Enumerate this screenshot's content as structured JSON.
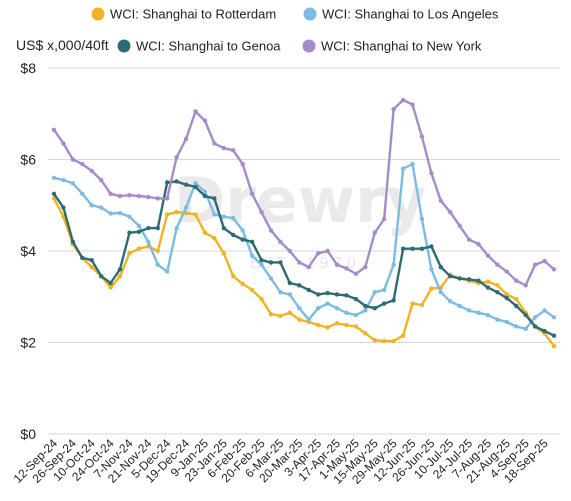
{
  "chart_data": {
    "type": "line",
    "title": "",
    "ylabel": "US$ x,000/40ft",
    "xlabel": "",
    "ylim": [
      0,
      8
    ],
    "yticks": [
      0,
      2,
      4,
      6,
      8
    ],
    "ytick_labels": [
      "$0",
      "$2",
      "$4",
      "$6",
      "$8"
    ],
    "grid": true,
    "legend": "top",
    "watermark": {
      "brand": "Drewry",
      "sub": "EST. 1970"
    },
    "x_labels": [
      "12-Sep-24",
      "26-Sep-24",
      "10-Oct-24",
      "24-Oct-24",
      "7-Nov-24",
      "21-Nov-24",
      "5-Dec-24",
      "19-Dec-24",
      "9-Jan-25",
      "23-Jan-25",
      "6-Feb-25",
      "20-Feb-25",
      "6-Mar-25",
      "20-Mar-25",
      "3-Apr-25",
      "17-Apr-25",
      "1-May-25",
      "15-May-25",
      "29-May-25",
      "12-Jun-25",
      "26-Jun-25",
      "10-Jul-25",
      "24-Jul-25",
      "7-Aug-25",
      "21-Aug-25",
      "4-Sep-25",
      "18-Sep-25"
    ],
    "x_dates": [
      "2024-09-12",
      "2024-09-19",
      "2024-09-26",
      "2024-10-03",
      "2024-10-10",
      "2024-10-17",
      "2024-10-24",
      "2024-10-31",
      "2024-11-07",
      "2024-11-14",
      "2024-11-21",
      "2024-11-28",
      "2024-12-05",
      "2024-12-12",
      "2024-12-19",
      "2024-12-26",
      "2025-01-02",
      "2025-01-09",
      "2025-01-16",
      "2025-01-23",
      "2025-01-30",
      "2025-02-06",
      "2025-02-13",
      "2025-02-20",
      "2025-02-27",
      "2025-03-06",
      "2025-03-13",
      "2025-03-20",
      "2025-03-27",
      "2025-04-03",
      "2025-04-10",
      "2025-04-17",
      "2025-04-24",
      "2025-05-01",
      "2025-05-08",
      "2025-05-15",
      "2025-05-22",
      "2025-05-29",
      "2025-06-05",
      "2025-06-12",
      "2025-06-19",
      "2025-06-26",
      "2025-07-03",
      "2025-07-10",
      "2025-07-17",
      "2025-07-24",
      "2025-07-31",
      "2025-08-07",
      "2025-08-14",
      "2025-08-21",
      "2025-08-28",
      "2025-09-04",
      "2025-09-11",
      "2025-09-18"
    ],
    "series": [
      {
        "name": "WCI: Shanghai to Rotterdam",
        "color": "#f0b323",
        "values": [
          5.15,
          4.75,
          4.15,
          3.85,
          3.65,
          3.45,
          3.2,
          3.45,
          3.95,
          4.05,
          4.1,
          4.0,
          4.8,
          4.85,
          4.83,
          4.8,
          4.4,
          4.28,
          3.95,
          3.45,
          3.28,
          3.15,
          2.95,
          2.62,
          2.58,
          2.65,
          2.5,
          2.45,
          2.38,
          2.33,
          2.42,
          2.38,
          2.35,
          2.2,
          2.05,
          2.03,
          2.03,
          2.15,
          2.85,
          2.82,
          3.18,
          3.2,
          3.48,
          3.4,
          3.35,
          3.3,
          3.33,
          3.25,
          3.05,
          2.95,
          2.65,
          2.35,
          2.2,
          1.92
        ]
      },
      {
        "name": "WCI: Shanghai to Los Angeles",
        "color": "#7cbbe3",
        "values": [
          5.6,
          5.55,
          5.48,
          5.25,
          5.0,
          4.95,
          4.82,
          4.83,
          4.75,
          4.55,
          4.2,
          3.7,
          3.55,
          4.5,
          4.95,
          5.48,
          5.3,
          4.8,
          4.75,
          4.72,
          4.45,
          3.9,
          3.7,
          3.4,
          3.1,
          3.05,
          2.75,
          2.5,
          2.75,
          2.85,
          2.75,
          2.65,
          2.6,
          2.7,
          3.1,
          3.15,
          3.7,
          5.8,
          5.9,
          4.7,
          3.6,
          3.1,
          2.9,
          2.8,
          2.7,
          2.65,
          2.6,
          2.5,
          2.45,
          2.35,
          2.3,
          2.55,
          2.7,
          2.55
        ]
      },
      {
        "name": "WCI: Shanghai to Genoa",
        "color": "#2f6b73",
        "values": [
          5.25,
          4.95,
          4.2,
          3.85,
          3.8,
          3.45,
          3.3,
          3.6,
          4.4,
          4.42,
          4.5,
          4.5,
          5.5,
          5.52,
          5.45,
          5.4,
          5.2,
          5.15,
          4.5,
          4.35,
          4.25,
          4.2,
          3.8,
          3.75,
          3.75,
          3.3,
          3.25,
          3.15,
          3.05,
          3.08,
          3.05,
          3.03,
          2.95,
          2.8,
          2.75,
          2.85,
          2.92,
          4.05,
          4.05,
          4.05,
          4.1,
          3.65,
          3.45,
          3.4,
          3.38,
          3.35,
          3.2,
          3.1,
          2.97,
          2.8,
          2.6,
          2.35,
          2.25,
          2.15
        ]
      },
      {
        "name": "WCI: Shanghai to New York",
        "color": "#a68bcb",
        "values": [
          6.65,
          6.35,
          6.0,
          5.9,
          5.75,
          5.55,
          5.25,
          5.2,
          5.22,
          5.2,
          5.18,
          5.15,
          5.15,
          6.05,
          6.45,
          7.05,
          6.85,
          6.35,
          6.25,
          6.2,
          5.9,
          5.25,
          4.85,
          4.45,
          4.2,
          4.0,
          3.75,
          3.65,
          3.95,
          4.0,
          3.7,
          3.62,
          3.5,
          3.65,
          4.4,
          4.7,
          7.1,
          7.3,
          7.2,
          6.5,
          5.7,
          5.1,
          4.85,
          4.55,
          4.25,
          4.15,
          3.9,
          3.7,
          3.55,
          3.35,
          3.25,
          3.7,
          3.78,
          3.6
        ]
      }
    ]
  }
}
